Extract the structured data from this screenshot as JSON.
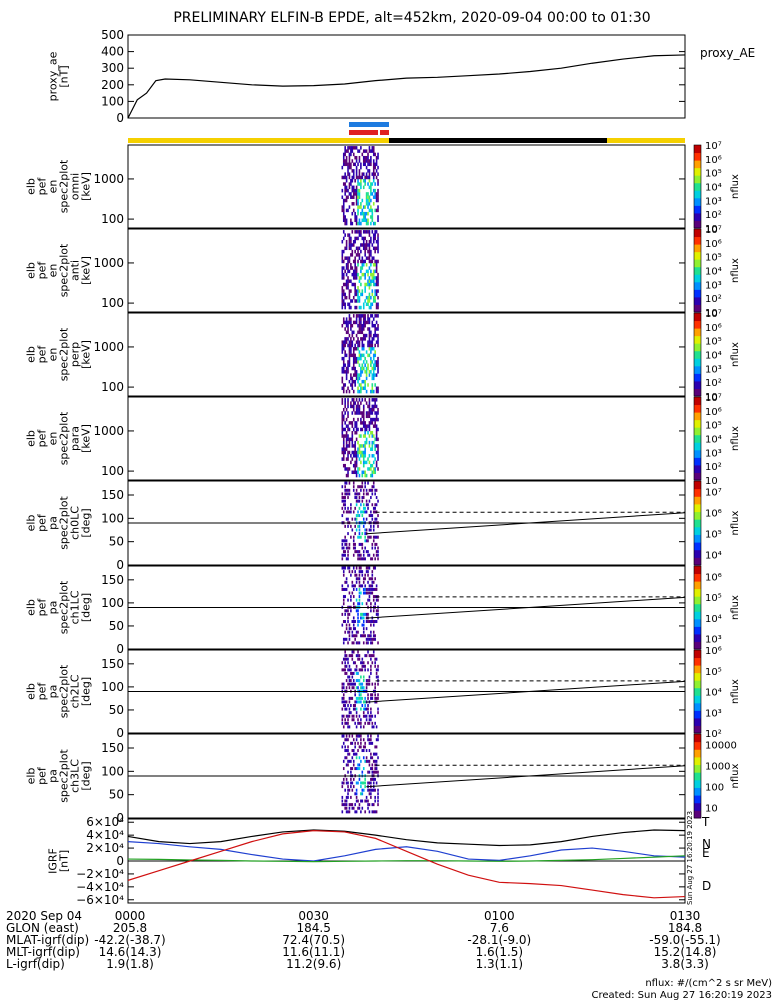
{
  "title": "PRELIMINARY ELFIN-B EPDE, alt=452km, 2020-09-04 00:00 to 01:30",
  "time_range": [
    "00:00",
    "01:30"
  ],
  "colors": {
    "status_yellow": "#f5d000",
    "status_black": "#000000",
    "marker_blue": "#1e7be0",
    "marker_red": "#e02020",
    "grf_black": "#000000",
    "grf_blue": "#1f3fd0",
    "grf_green": "#22a022",
    "grf_red": "#d01010"
  },
  "chart_data": [
    {
      "type": "line",
      "panel": "proxy_ae",
      "ylabel": [
        "proxy_ae",
        "[nT]"
      ],
      "legend": "proxy_AE",
      "ylim": [
        0,
        500
      ],
      "yticks": [
        {
          "v": 0,
          "label": "0"
        },
        {
          "v": 100,
          "label": "100"
        },
        {
          "v": 200,
          "label": "200"
        },
        {
          "v": 300,
          "label": "300"
        },
        {
          "v": 400,
          "label": "400"
        },
        {
          "v": 500,
          "label": "500"
        }
      ],
      "x_minutes": [
        0,
        1.5,
        3,
        4.5,
        6,
        10,
        15,
        20,
        25,
        30,
        35,
        40,
        45,
        50,
        55,
        60,
        65,
        70,
        75,
        80,
        85,
        90
      ],
      "values": [
        0,
        110,
        150,
        225,
        235,
        230,
        215,
        200,
        192,
        195,
        205,
        225,
        240,
        245,
        255,
        265,
        280,
        300,
        330,
        355,
        375,
        380
      ]
    },
    {
      "type": "heatmap",
      "panel": "spec-omni",
      "ylabel": [
        "elb",
        "pef",
        "en",
        "spec2plot",
        "omni",
        "[keV]"
      ],
      "yscale": "log",
      "ylim": [
        60,
        7000
      ],
      "yticks": [
        {
          "v": 100,
          "label": "100"
        },
        {
          "v": 1000,
          "label": "1000"
        }
      ],
      "colorbar": {
        "label": "nflux",
        "ticks": [
          "10",
          "10²",
          "10³",
          "10⁴",
          "10⁵",
          "10⁶",
          "10⁷"
        ]
      }
    },
    {
      "type": "heatmap",
      "panel": "spec-anti",
      "ylabel": [
        "elb",
        "pef",
        "en",
        "spec2plot",
        "anti",
        "[keV]"
      ],
      "yscale": "log",
      "ylim": [
        60,
        7000
      ],
      "yticks": [
        {
          "v": 100,
          "label": "100"
        },
        {
          "v": 1000,
          "label": "1000"
        }
      ],
      "colorbar": {
        "label": "nflux",
        "ticks": [
          "10",
          "10²",
          "10³",
          "10⁴",
          "10⁵",
          "10⁶",
          "10⁷"
        ]
      }
    },
    {
      "type": "heatmap",
      "panel": "spec-perp",
      "ylabel": [
        "elb",
        "pef",
        "en",
        "spec2plot",
        "perp",
        "[keV]"
      ],
      "yscale": "log",
      "ylim": [
        60,
        7000
      ],
      "yticks": [
        {
          "v": 100,
          "label": "100"
        },
        {
          "v": 1000,
          "label": "1000"
        }
      ],
      "colorbar": {
        "label": "nflux",
        "ticks": [
          "10",
          "10²",
          "10³",
          "10⁴",
          "10⁵",
          "10⁶",
          "10⁷"
        ]
      }
    },
    {
      "type": "heatmap",
      "panel": "spec-para",
      "ylabel": [
        "elb",
        "pef",
        "en",
        "spec2plot",
        "para",
        "[keV]"
      ],
      "yscale": "log",
      "ylim": [
        60,
        7000
      ],
      "yticks": [
        {
          "v": 100,
          "label": "100"
        },
        {
          "v": 1000,
          "label": "1000"
        }
      ],
      "colorbar": {
        "label": "nflux",
        "ticks": [
          "10",
          "10²",
          "10³",
          "10⁴",
          "10⁵",
          "10⁶",
          "10⁷"
        ]
      }
    },
    {
      "type": "heatmap",
      "panel": "pa-ch0LC",
      "ylabel": [
        "elb",
        "pef",
        "pa",
        "spec2plot",
        "ch0LC",
        "[deg]"
      ],
      "ylim": [
        0,
        180
      ],
      "yticks": [
        {
          "v": 0,
          "label": "0"
        },
        {
          "v": 50,
          "label": "50"
        },
        {
          "v": 100,
          "label": "100"
        },
        {
          "v": 150,
          "label": "150"
        }
      ],
      "colorbar": {
        "label": "nflux",
        "ticks": [
          "10⁴",
          "10⁵",
          "10⁶",
          "10⁷"
        ]
      }
    },
    {
      "type": "heatmap",
      "panel": "pa-ch1LC",
      "ylabel": [
        "elb",
        "pef",
        "pa",
        "spec2plot",
        "ch1LC",
        "[deg]"
      ],
      "ylim": [
        0,
        180
      ],
      "yticks": [
        {
          "v": 0,
          "label": "0"
        },
        {
          "v": 50,
          "label": "50"
        },
        {
          "v": 100,
          "label": "100"
        },
        {
          "v": 150,
          "label": "150"
        }
      ],
      "colorbar": {
        "label": "nflux",
        "ticks": [
          "10³",
          "10⁴",
          "10⁵",
          "10⁶"
        ]
      }
    },
    {
      "type": "heatmap",
      "panel": "pa-ch2LC",
      "ylabel": [
        "elb",
        "pef",
        "pa",
        "spec2plot",
        "ch2LC",
        "[deg]"
      ],
      "ylim": [
        0,
        180
      ],
      "yticks": [
        {
          "v": 0,
          "label": "0"
        },
        {
          "v": 50,
          "label": "50"
        },
        {
          "v": 100,
          "label": "100"
        },
        {
          "v": 150,
          "label": "150"
        }
      ],
      "colorbar": {
        "label": "nflux",
        "ticks": [
          "10²",
          "10³",
          "10⁴",
          "10⁵",
          "10⁶"
        ]
      }
    },
    {
      "type": "heatmap",
      "panel": "pa-ch3LC",
      "ylabel": [
        "elb",
        "pef",
        "pa",
        "spec2plot",
        "ch3LC",
        "[deg]"
      ],
      "ylim": [
        0,
        180
      ],
      "yticks": [
        {
          "v": 0,
          "label": "0"
        },
        {
          "v": 50,
          "label": "50"
        },
        {
          "v": 100,
          "label": "100"
        },
        {
          "v": 150,
          "label": "150"
        }
      ],
      "colorbar": {
        "label": "nflux",
        "ticks": [
          "10",
          "100",
          "1000",
          "10000"
        ]
      }
    },
    {
      "type": "line",
      "panel": "grf",
      "ylabel": [
        "IGRF",
        "[nT]"
      ],
      "ylim": [
        -65000,
        65000
      ],
      "yticks": [
        {
          "v": 60000,
          "label": "6×10⁴"
        },
        {
          "v": 40000,
          "label": "4×10⁴"
        },
        {
          "v": 20000,
          "label": "2×10⁴"
        },
        {
          "v": 0,
          "label": "0"
        },
        {
          "v": -20000,
          "label": "−2×10⁴"
        },
        {
          "v": -40000,
          "label": "−4×10⁴"
        },
        {
          "v": -60000,
          "label": "−6×10⁴"
        }
      ],
      "x_minutes": [
        0,
        5,
        10,
        15,
        20,
        25,
        30,
        35,
        40,
        45,
        50,
        55,
        60,
        65,
        70,
        75,
        80,
        85,
        90
      ],
      "series": [
        {
          "name": "T",
          "values": [
            38000,
            30000,
            27000,
            30000,
            38000,
            45000,
            48000,
            46000,
            40000,
            33000,
            28000,
            26000,
            24000,
            25000,
            30000,
            38000,
            44000,
            48000,
            47000
          ]
        },
        {
          "name": "N",
          "values": [
            30000,
            27000,
            22000,
            18000,
            10000,
            3000,
            0,
            8000,
            18000,
            22000,
            15000,
            3000,
            1000,
            8000,
            17000,
            20000,
            15000,
            8000,
            6000
          ]
        },
        {
          "name": "E",
          "values": [
            3000,
            2500,
            1500,
            1000,
            0,
            -500,
            -1000,
            -500,
            0,
            500,
            500,
            0,
            -500,
            0,
            1000,
            2000,
            4000,
            6000,
            8000
          ]
        },
        {
          "name": "D",
          "values": [
            -30000,
            -15000,
            0,
            15000,
            30000,
            42000,
            47000,
            45000,
            35000,
            15000,
            -5000,
            -22000,
            -33000,
            -35000,
            -38000,
            -45000,
            -52000,
            -57000,
            -55000
          ]
        }
      ]
    }
  ],
  "orbit": {
    "rows": [
      {
        "label": "2020 Sep 04",
        "values": [
          "0000",
          "0030",
          "0100",
          "0130"
        ]
      },
      {
        "label": "GLON (east)",
        "values": [
          "205.8",
          "184.5",
          "7.6",
          "184.8"
        ]
      },
      {
        "label": "MLAT-igrf(dip)",
        "values": [
          "-42.2(-38.7)",
          "72.4(70.5)",
          "-28.1(-9.0)",
          "-59.0(-55.1)"
        ]
      },
      {
        "label": "MLT-igrf(dip)",
        "values": [
          "14.6(14.3)",
          "11.6(11.1)",
          "1.6(1.5)",
          "15.2(14.8)"
        ]
      },
      {
        "label": "L-igrf(dip)",
        "values": [
          "1.9(1.8)",
          "11.2(9.6)",
          "1.3(1.1)",
          "3.8(3.3)"
        ]
      }
    ]
  },
  "footer": {
    "units": "nflux: #/(cm^2 s sr MeV)",
    "created": "Created: Sun Aug 27 16:20:19 2023"
  },
  "side_stamp": "Sun Aug 27 16:20:19 2023"
}
